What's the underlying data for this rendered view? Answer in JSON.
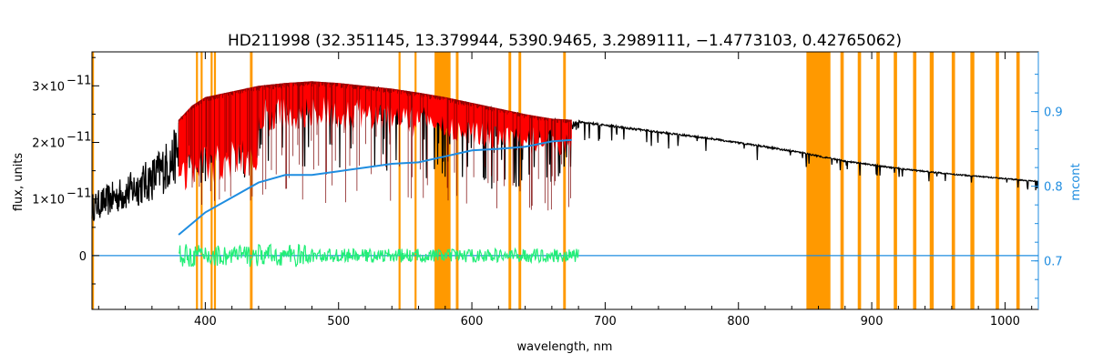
{
  "chart_data": {
    "type": "line",
    "title": "HD211998    (32.351145, 13.379944, 5390.9465, 3.2989111, −1.4773103, 0.42765062)",
    "xlabel": "wavelength, nm",
    "ylabel": "flux, units",
    "ylabel_right": "mcont",
    "xlim": [
      315,
      1025
    ],
    "ylim": [
      -9.5e-12,
      3.6e-11
    ],
    "ylim_right": [
      0.635,
      0.98
    ],
    "x_ticks": [
      400,
      500,
      600,
      700,
      800,
      900,
      1000
    ],
    "y_ticks": [
      {
        "value": 0,
        "label": "0"
      },
      {
        "value": 1e-11,
        "mantissa": "1×10",
        "exponent": "−11"
      },
      {
        "value": 2e-11,
        "mantissa": "2×10",
        "exponent": "−11"
      },
      {
        "value": 3e-11,
        "mantissa": "3×10",
        "exponent": "−11"
      }
    ],
    "y_ticks_right": [
      0.7,
      0.8,
      0.9
    ],
    "colors": {
      "observed": "#000000",
      "model": "#ff0000",
      "residual": "#22ee77",
      "continuum": "#1f8de0",
      "mask": "#ff9900",
      "right_axis": "#1f8de0"
    },
    "series": [
      {
        "key": "observed",
        "axis": "left",
        "x": [
          315,
          330,
          345,
          360,
          375,
          380,
          390,
          400,
          420,
          440,
          460,
          480,
          500,
          520,
          540,
          560,
          580,
          600,
          620,
          640,
          660,
          680,
          700,
          740,
          780,
          820,
          850,
          880,
          920,
          960,
          1000,
          1025
        ],
        "y": [
          1.1e-11,
          1.3e-11,
          1.5e-11,
          1.75e-11,
          2.15e-11,
          2.4e-11,
          2.65e-11,
          2.8e-11,
          2.9e-11,
          3e-11,
          3.05e-11,
          3.08e-11,
          3.05e-11,
          3e-11,
          2.95e-11,
          2.88e-11,
          2.8e-11,
          2.7e-11,
          2.6e-11,
          2.5e-11,
          2.42e-11,
          2.38e-11,
          2.32e-11,
          2.2e-11,
          2.08e-11,
          1.94e-11,
          1.82e-11,
          1.68e-11,
          1.55e-11,
          1.45e-11,
          1.37e-11,
          1.32e-11
        ]
      },
      {
        "key": "model",
        "axis": "left",
        "x": [
          380,
          390,
          400,
          420,
          440,
          460,
          480,
          500,
          520,
          540,
          560,
          580,
          600,
          620,
          640,
          660,
          675
        ],
        "y": [
          2.4e-11,
          2.65e-11,
          2.8e-11,
          2.9e-11,
          3e-11,
          3.05e-11,
          3.08e-11,
          3.05e-11,
          3e-11,
          2.95e-11,
          2.88e-11,
          2.8e-11,
          2.7e-11,
          2.6e-11,
          2.5e-11,
          2.42e-11,
          2.4e-11
        ]
      },
      {
        "key": "residual",
        "axis": "left",
        "x": [
          380,
          680
        ],
        "y": [
          0,
          0
        ]
      },
      {
        "key": "continuum",
        "axis": "right",
        "x": [
          380,
          400,
          420,
          440,
          460,
          480,
          500,
          520,
          540,
          560,
          580,
          600,
          620,
          640,
          660,
          675
        ],
        "y": [
          0.735,
          0.765,
          0.785,
          0.805,
          0.815,
          0.815,
          0.82,
          0.825,
          0.83,
          0.832,
          0.84,
          0.848,
          0.85,
          0.853,
          0.86,
          0.862
        ]
      }
    ],
    "masked_regions": [
      [
        315,
        316.5
      ],
      [
        393,
        394.5
      ],
      [
        396.5,
        398
      ],
      [
        404,
        405.5
      ],
      [
        406.5,
        408
      ],
      [
        433.5,
        435.5
      ],
      [
        545,
        546.5
      ],
      [
        557,
        558.5
      ],
      [
        572,
        584
      ],
      [
        588,
        590
      ],
      [
        627.5,
        629.5
      ],
      [
        635,
        637
      ],
      [
        668.5,
        670.5
      ],
      [
        851,
        869
      ],
      [
        876.5,
        879
      ],
      [
        889.5,
        892
      ],
      [
        903.5,
        906
      ],
      [
        916.5,
        919
      ],
      [
        931,
        933.5
      ],
      [
        943.5,
        946.5
      ],
      [
        960,
        962.5
      ],
      [
        974,
        977
      ],
      [
        993,
        995.5
      ],
      [
        1008.5,
        1011
      ]
    ]
  }
}
